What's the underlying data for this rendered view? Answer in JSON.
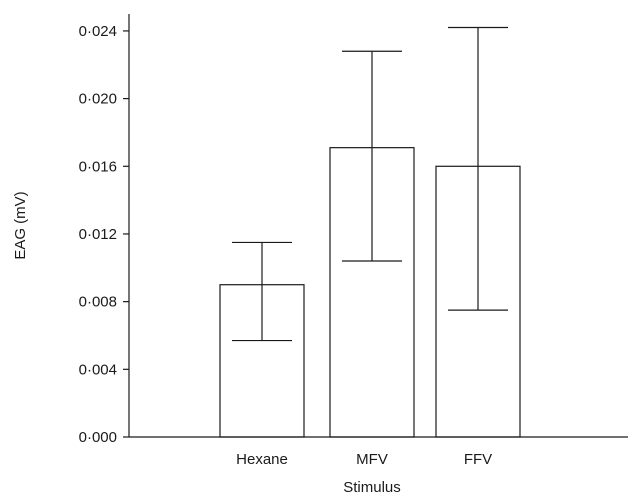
{
  "chart_data": {
    "type": "bar",
    "categories": [
      "Hexane",
      "MFV",
      "FFV"
    ],
    "series": [
      {
        "values": [
          0.009,
          0.0171,
          0.016
        ],
        "error_low": [
          0.0057,
          0.0104,
          0.0075
        ],
        "error_high": [
          0.0115,
          0.0228,
          0.0242
        ]
      }
    ],
    "xlabel": "Stimulus",
    "ylabel": "EAG (mV)",
    "ylim": [
      0,
      0.025
    ],
    "yticks": [
      0,
      0.004,
      0.008,
      0.012,
      0.016,
      0.02,
      0.024
    ],
    "ytick_labels": [
      "0·000",
      "0·004",
      "0·008",
      "0·012",
      "0·016",
      "0·020",
      "0·024"
    ],
    "grid": false,
    "legend": "none"
  }
}
